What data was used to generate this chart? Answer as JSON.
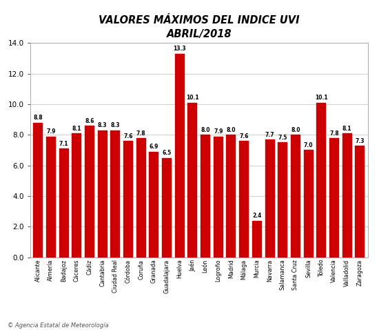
{
  "title_line1": "VALORES MÁXIMOS DEL INDICE UVI",
  "title_line2": "ABRIL/2018",
  "categories": [
    "Alicante",
    "Almería",
    "Badajoz",
    "Cáceres",
    "Cádiz",
    "Cantabria",
    "Ciudad Real",
    "Córdoba",
    "Coruña",
    "Granada",
    "Guadalajara",
    "Huelva",
    "Jaén",
    "León",
    "Logroño",
    "Madrid",
    "Málaga",
    "Murcia",
    "Navarra",
    "Salamanca",
    "Santa Cruz",
    "Sevilla",
    "Toledo",
    "Valencia",
    "Valladolid",
    "Zaragoza"
  ],
  "values": [
    8.8,
    7.9,
    7.1,
    8.1,
    8.6,
    8.3,
    8.3,
    7.6,
    7.8,
    6.9,
    6.5,
    13.3,
    10.1,
    8.0,
    7.9,
    8.0,
    7.6,
    2.4,
    7.7,
    7.5,
    8.0,
    7.0,
    10.1,
    7.8,
    8.1,
    7.3
  ],
  "bar_color": "#cc0000",
  "bar_edge_color": "#cc0000",
  "ylim": [
    0,
    14.0
  ],
  "yticks": [
    0.0,
    2.0,
    4.0,
    6.0,
    8.0,
    10.0,
    12.0,
    14.0
  ],
  "grid_color": "#c8c8c8",
  "background_color": "#ffffff",
  "title_fontsize": 10.5,
  "label_fontsize": 5.8,
  "value_fontsize": 5.5,
  "ytick_fontsize": 7.5,
  "footer_text": "© Agencia Estatal de Meteorología"
}
